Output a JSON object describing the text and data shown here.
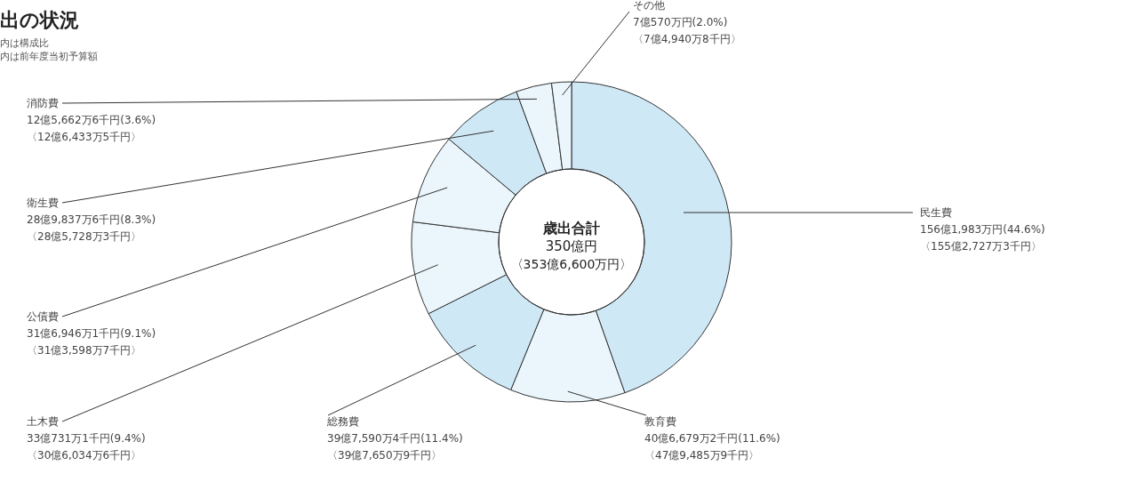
{
  "chart_data": {
    "type": "donut",
    "title": "出の状況",
    "annotations": [
      "内は構成比",
      "内は前年度当初予算額",
      "歳出合計",
      "350億円",
      "〈353億6,600万円〉"
    ],
    "categories": [
      "民生費",
      "教育費",
      "総務費",
      "土木費",
      "公債費",
      "衛生費",
      "消防費",
      "その他"
    ],
    "values": [
      44.6,
      11.6,
      11.4,
      9.4,
      9.1,
      8.3,
      3.6,
      2.0
    ],
    "colors": [
      "#cfe8f6",
      "#eaf6fc",
      "#cfe8f6",
      "#eaf6fc",
      "#eaf6fc",
      "#cfe8f6",
      "#eaf6fc",
      "#eaf6fc"
    ],
    "value_labels": [
      [
        "156億1,983万円(44.6%)",
        "〈155億2,727万3千円〉"
      ],
      [
        "40億6,679万2千円(11.6%)",
        "〈47億9,485万9千円〉"
      ],
      [
        "39億7,590万4千円(11.4%)",
        "〈39億7,650万9千円〉"
      ],
      [
        "33億731万1千円(9.4%)",
        "〈30億6,034万6千円〉"
      ],
      [
        "31億6,946万1千円(9.1%)",
        "〈31億3,598万7千円〉"
      ],
      [
        "28億9,837万6千円(8.3%)",
        "〈28億5,728万3千円〉"
      ],
      [
        "12億5,662万6千円(3.6%)",
        "〈12億6,433万5千円〉"
      ],
      [
        "7億570万円(2.0%)",
        "〈7億4,940万8千円〉"
      ]
    ]
  }
}
